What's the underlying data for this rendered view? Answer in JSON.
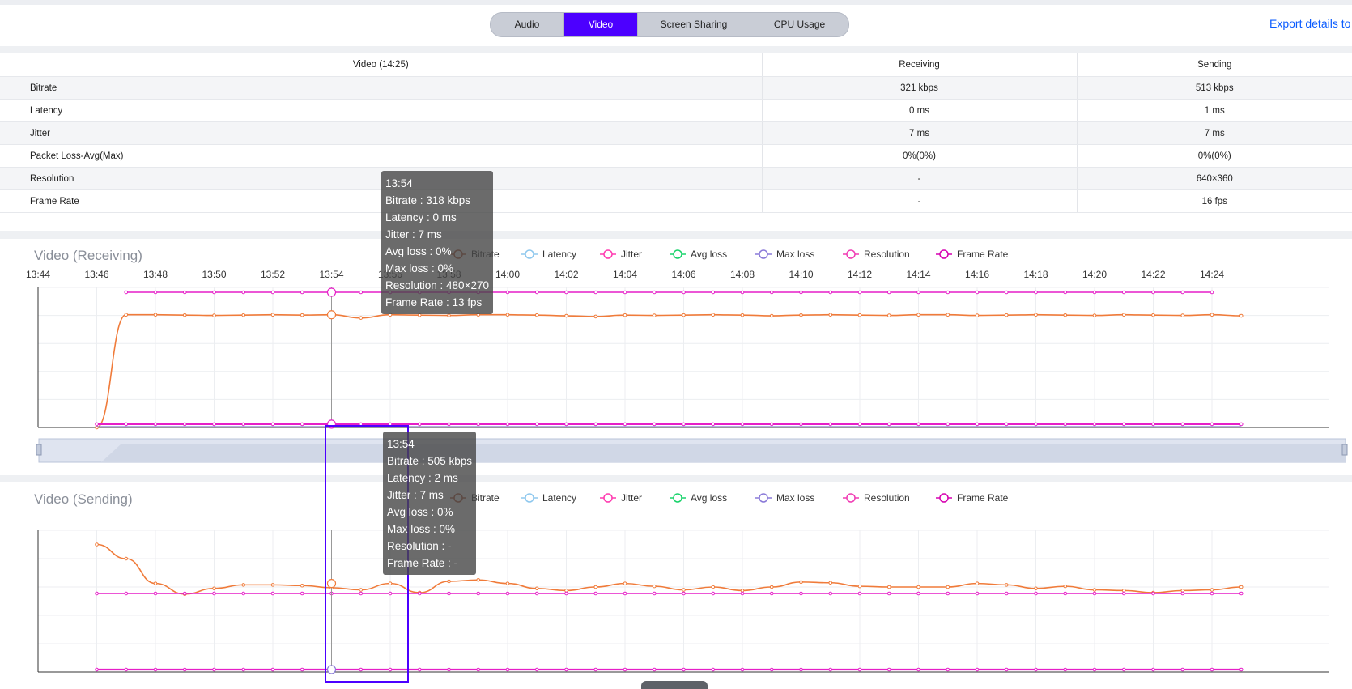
{
  "tabs": [
    {
      "label": "Audio",
      "active": false
    },
    {
      "label": "Video",
      "active": true
    },
    {
      "label": "Screen Sharing",
      "active": false
    },
    {
      "label": "CPU Usage",
      "active": false
    }
  ],
  "export_label": "Export details to",
  "stats_table": {
    "headers": [
      "Video (14:25)",
      "Receiving",
      "Sending"
    ],
    "rows": [
      {
        "metric": "Bitrate",
        "receiving": "321 kbps",
        "sending": "513 kbps"
      },
      {
        "metric": "Latency",
        "receiving": "0 ms",
        "sending": "1 ms"
      },
      {
        "metric": "Jitter",
        "receiving": "7 ms",
        "sending": "7 ms"
      },
      {
        "metric": "Packet Loss-Avg(Max)",
        "receiving": "0%(0%)",
        "sending": "0%(0%)"
      },
      {
        "metric": "Resolution",
        "receiving": "-",
        "sending": "640×360"
      },
      {
        "metric": "Frame Rate",
        "receiving": "-",
        "sending": "16 fps"
      }
    ]
  },
  "legend": [
    {
      "label": "Bitrate",
      "color": "#b3573b"
    },
    {
      "label": "Latency",
      "color": "#8fc8ee"
    },
    {
      "label": "Jitter",
      "color": "#ff3ab0"
    },
    {
      "label": "Avg loss",
      "color": "#19d36b"
    },
    {
      "label": "Max loss",
      "color": "#8a7ad8"
    },
    {
      "label": "Resolution",
      "color": "#f03cb4"
    },
    {
      "label": "Frame Rate",
      "color": "#d600b0"
    }
  ],
  "colors": {
    "accent": "#4c00ff",
    "bitrate_line": "#f07b3a",
    "top_line": "#e61fc8",
    "link": "#0b5cff"
  },
  "chart_data": [
    {
      "type": "line",
      "title": "Video (Receiving)",
      "x_ticks": [
        "13:44",
        "13:46",
        "13:48",
        "13:50",
        "13:52",
        "13:54",
        "13:56",
        "13:58",
        "14:00",
        "14:02",
        "14:04",
        "14:06",
        "14:08",
        "14:10",
        "14:12",
        "14:14",
        "14:16",
        "14:18",
        "14:20",
        "14:22",
        "14:24"
      ],
      "series": [
        {
          "name": "Frame Rate",
          "start": "13:47",
          "end": "14:24",
          "values": [
            13
          ]
        },
        {
          "name": "Bitrate",
          "start": "13:46",
          "end": "14:25",
          "values": [
            0,
            318,
            318,
            317,
            316,
            317,
            318,
            317,
            318,
            309,
            318,
            317,
            316,
            318,
            318,
            317,
            315,
            313,
            317,
            316,
            317,
            318,
            317,
            315,
            317,
            318,
            317,
            316,
            318,
            318,
            316,
            317,
            318,
            317,
            316,
            318,
            317,
            316,
            318,
            315
          ]
        },
        {
          "name": "Jitter",
          "start": "13:46",
          "end": "14:25",
          "values": [
            7
          ]
        },
        {
          "name": "Latency",
          "start": "13:46",
          "end": "14:25",
          "values": [
            0
          ]
        }
      ],
      "tooltip": {
        "time": "13:54",
        "lines": [
          "Bitrate : 318 kbps",
          "Latency : 0 ms",
          "Jitter : 7 ms",
          "Avg loss : 0%",
          "Max loss : 0%",
          "Resolution : 480×270",
          "Frame Rate : 13 fps"
        ]
      }
    },
    {
      "type": "line",
      "title": "Video (Sending)",
      "series": [
        {
          "name": "Bitrate",
          "start": "13:46",
          "end": "14:25",
          "values": [
            560,
            540,
            505,
            490,
            498,
            503,
            503,
            502,
            499,
            496,
            505,
            492,
            508,
            510,
            505,
            498,
            495,
            500,
            505,
            501,
            496,
            500,
            495,
            500,
            507,
            506,
            501,
            500,
            500,
            500,
            505,
            503,
            498,
            501,
            496,
            495,
            492,
            495,
            496,
            500
          ]
        },
        {
          "name": "Resolution",
          "start": "13:46",
          "end": "14:25",
          "values": [
            520
          ]
        },
        {
          "name": "Jitter",
          "start": "13:46",
          "end": "14:25",
          "values": [
            7
          ]
        }
      ],
      "tooltip": {
        "time": "13:54",
        "lines": [
          "Bitrate : 505 kbps",
          "Latency : 2 ms",
          "Jitter : 7 ms",
          "Avg loss : 0%",
          "Max loss : 0%",
          "Resolution : -",
          "Frame Rate : -"
        ]
      }
    }
  ]
}
